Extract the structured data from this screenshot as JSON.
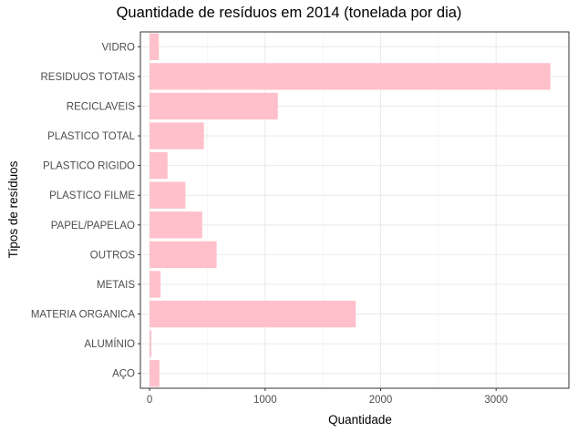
{
  "chart_data": {
    "type": "bar",
    "orientation": "horizontal",
    "title": "Quantidade de resíduos em 2014 (tonelada por dia)",
    "xlabel": "Quantidade",
    "ylabel": "Tipos de resíduos",
    "categories": [
      "VIDRO",
      "RESIDUOS TOTAIS",
      "RECICLAVEIS",
      "PLASTICO TOTAL",
      "PLASTICO RIGIDO",
      "PLASTICO FILME",
      "PAPEL/PAPELAO",
      "OUTROS",
      "METAIS",
      "MATERIA ORGANICA",
      "ALUMÍNIO",
      "AÇO"
    ],
    "values": [
      80,
      3470,
      1110,
      470,
      155,
      310,
      455,
      580,
      95,
      1785,
      15,
      85
    ],
    "xlim": [
      -80,
      3630
    ],
    "xticks": [
      0,
      1000,
      2000,
      3000
    ],
    "bar_color": "#ffc0cb",
    "grid": true,
    "legend": "none"
  }
}
